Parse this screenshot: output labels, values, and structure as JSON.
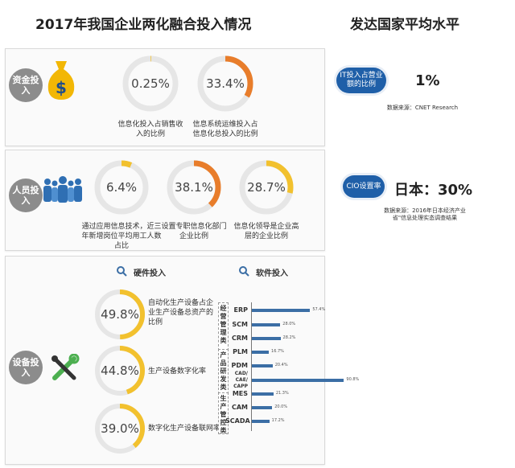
{
  "header": {
    "left_title": "2017年我国企业两化融合投入情况",
    "right_title": "发达国家平均水平"
  },
  "sections": {
    "funding": {
      "tag": "资金投入",
      "icon": "money-bag-icon"
    },
    "people": {
      "tag": "人员投入",
      "icon": "people-group-icon"
    },
    "equipment": {
      "tag": "设备投入",
      "icon": "tools-icon"
    }
  },
  "colors": {
    "track": "#e6e6e6",
    "yellow": "#f2c12e",
    "orange": "#e87d2b",
    "bar": "#3b6ea5",
    "pill": "#1f5fa8"
  },
  "chart_data": [
    {
      "type": "donut",
      "section": "funding",
      "items": [
        {
          "label": "0.25%",
          "value": 0.25,
          "caption": "信息化投入占销售收入的比例",
          "color": "#f2c12e"
        },
        {
          "label": "33.4%",
          "value": 33.4,
          "caption": "信息系统运维投入占信息化总投入的比例",
          "color": "#e87d2b"
        }
      ]
    },
    {
      "type": "donut",
      "section": "people",
      "items": [
        {
          "label": "6.4%",
          "value": 6.4,
          "caption": "通过应用信息技术，近三年新增岗位平均用工人数占比",
          "color": "#f2c12e"
        },
        {
          "label": "38.1%",
          "value": 38.1,
          "caption": "设置专职信息化部门企业比例",
          "color": "#e87d2b"
        },
        {
          "label": "28.7%",
          "value": 28.7,
          "caption": "信息化领导是企业高层的企业比例",
          "color": "#f2c12e"
        }
      ]
    },
    {
      "type": "donut",
      "section": "equipment",
      "heading": "硬件投入",
      "items": [
        {
          "label": "49.8%",
          "value": 49.8,
          "caption": "自动化生产设备占企业生产设备总资产的比例",
          "color": "#f2c12e"
        },
        {
          "label": "44.8%",
          "value": 44.8,
          "caption": "生产设备数字化率",
          "color": "#f2c12e"
        },
        {
          "label": "39.0%",
          "value": 39.0,
          "caption": "数字化生产设备联网率",
          "color": "#f2c12e"
        }
      ]
    },
    {
      "type": "bar",
      "orientation": "horizontal",
      "heading": "软件投入",
      "groups": [
        {
          "name": "经营管理类",
          "categories": [
            "ERP",
            "SCM",
            "CRM"
          ]
        },
        {
          "name": "产品研发类",
          "categories": [
            "PLM",
            "PDM",
            "CAD/CAE/CAPP"
          ]
        },
        {
          "name": "生产管控类",
          "categories": [
            "MES",
            "CAM",
            "SCADA"
          ]
        }
      ],
      "categories": [
        "ERP",
        "SCM",
        "CRM",
        "PLM",
        "PDM",
        "CAD/CAE/CAPP",
        "MES",
        "CAM",
        "SCADA"
      ],
      "category_lines": [
        [
          "ERP"
        ],
        [
          "SCM"
        ],
        [
          "CRM"
        ],
        [
          "PLM"
        ],
        [
          "PDM"
        ],
        [
          "CAD/",
          "CAE/",
          "CAPP"
        ],
        [
          "MES"
        ],
        [
          "CAM"
        ],
        [
          "SCADA"
        ]
      ],
      "values": [
        57.4,
        28.0,
        28.2,
        16.7,
        20.4,
        90.8,
        21.3,
        20.0,
        17.2
      ],
      "value_labels": [
        "57.4%",
        "28.0%",
        "28.2%",
        "16.7%",
        "20.4%",
        "90.8%",
        "21.3%",
        "20.0%",
        "17.2%"
      ],
      "xlim": [
        0,
        100
      ]
    }
  ],
  "benchmarks": [
    {
      "pill": "IT投入占营业额的比例",
      "value": "1%",
      "source": "数据来源：CNET Research"
    },
    {
      "pill": "CIO设置率",
      "value": "日本：30%",
      "source": "数据来源：2016年日本经济产业省\"信息处理实态调查结果"
    }
  ]
}
